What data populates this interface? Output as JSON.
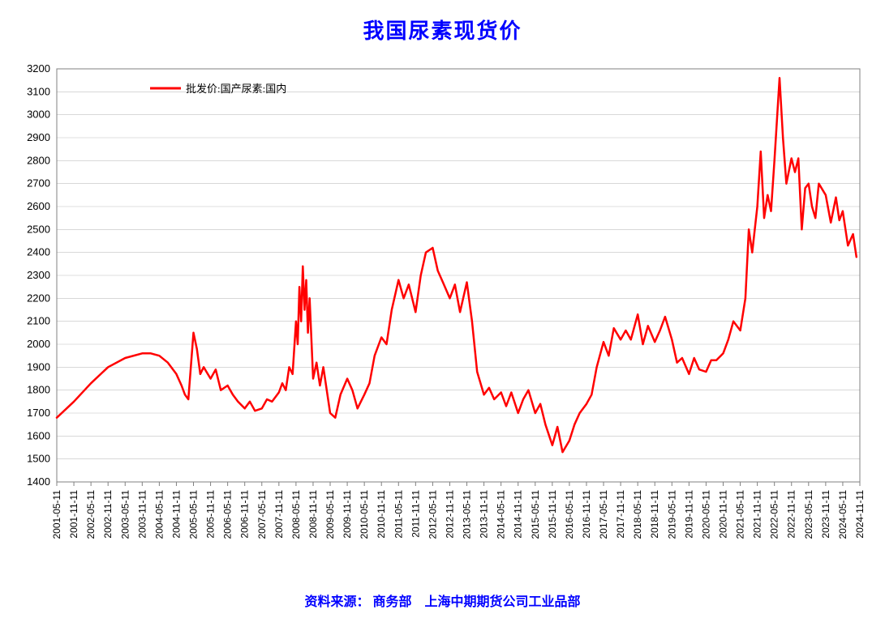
{
  "chart": {
    "type": "line",
    "title": "我国尿素现货价",
    "title_fontsize": 26,
    "title_color": "#0000ff",
    "footer": "资料来源： 商务部　上海中期期货公司工业品部",
    "footer_fontsize": 16,
    "footer_color": "#0000ff",
    "background_color": "#ffffff",
    "plot_border_color": "#808080",
    "plot_border_width": 1,
    "gridline_color": "#c0c0c0",
    "gridline_width": 0.6,
    "line_color": "#ff0000",
    "line_width": 2.5,
    "legend": {
      "label": "批发价:国产尿素:国内",
      "position": "top-left",
      "line_color": "#ff0000",
      "fontsize": 13
    },
    "y_axis": {
      "min": 1400,
      "max": 3200,
      "tick_step": 100,
      "label_fontsize": 13,
      "label_color": "#000000"
    },
    "x_axis": {
      "labels": [
        "2001-05-11",
        "2001-11-11",
        "2002-05-11",
        "2002-11-11",
        "2003-05-11",
        "2003-11-11",
        "2004-05-11",
        "2004-11-11",
        "2005-05-11",
        "2005-11-11",
        "2006-05-11",
        "2006-11-11",
        "2007-05-11",
        "2007-11-11",
        "2008-05-11",
        "2008-11-11",
        "2009-05-11",
        "2009-11-11",
        "2010-05-11",
        "2010-11-11",
        "2011-05-11",
        "2011-11-11",
        "2012-05-11",
        "2012-11-11",
        "2013-05-11",
        "2013-11-11",
        "2014-05-11",
        "2014-11-11",
        "2015-05-11",
        "2015-11-11",
        "2016-05-11",
        "2016-11-11",
        "2017-05-11",
        "2017-11-11",
        "2018-05-11",
        "2018-11-11",
        "2019-05-11",
        "2019-11-11",
        "2020-05-11",
        "2020-11-11",
        "2021-05-11",
        "2021-11-11",
        "2022-05-11",
        "2022-11-11",
        "2023-05-11",
        "2023-11-11",
        "2024-05-11",
        "2024-11-11"
      ],
      "label_fontsize": 12,
      "label_color": "#000000",
      "label_rotation": -90
    },
    "series": [
      {
        "name": "批发价:国产尿素:国内",
        "color": "#ff0000",
        "data": [
          [
            0,
            1680
          ],
          [
            1,
            1750
          ],
          [
            2,
            1830
          ],
          [
            3,
            1900
          ],
          [
            4,
            1940
          ],
          [
            5,
            1960
          ],
          [
            5.5,
            1960
          ],
          [
            6,
            1950
          ],
          [
            6.5,
            1920
          ],
          [
            7,
            1870
          ],
          [
            7.3,
            1820
          ],
          [
            7.5,
            1780
          ],
          [
            7.7,
            1760
          ],
          [
            8,
            2050
          ],
          [
            8.2,
            1980
          ],
          [
            8.4,
            1870
          ],
          [
            8.6,
            1900
          ],
          [
            9,
            1850
          ],
          [
            9.3,
            1890
          ],
          [
            9.6,
            1800
          ],
          [
            10,
            1820
          ],
          [
            10.3,
            1780
          ],
          [
            10.6,
            1750
          ],
          [
            11,
            1720
          ],
          [
            11.3,
            1750
          ],
          [
            11.6,
            1710
          ],
          [
            12,
            1720
          ],
          [
            12.3,
            1760
          ],
          [
            12.6,
            1750
          ],
          [
            13,
            1790
          ],
          [
            13.2,
            1830
          ],
          [
            13.4,
            1800
          ],
          [
            13.6,
            1900
          ],
          [
            13.8,
            1870
          ],
          [
            14,
            2100
          ],
          [
            14.1,
            2000
          ],
          [
            14.2,
            2250
          ],
          [
            14.3,
            2100
          ],
          [
            14.4,
            2340
          ],
          [
            14.5,
            2150
          ],
          [
            14.6,
            2280
          ],
          [
            14.7,
            2050
          ],
          [
            14.8,
            2200
          ],
          [
            15,
            1850
          ],
          [
            15.2,
            1920
          ],
          [
            15.4,
            1820
          ],
          [
            15.6,
            1900
          ],
          [
            15.8,
            1800
          ],
          [
            16,
            1700
          ],
          [
            16.3,
            1680
          ],
          [
            16.6,
            1780
          ],
          [
            17,
            1850
          ],
          [
            17.3,
            1800
          ],
          [
            17.6,
            1720
          ],
          [
            18,
            1780
          ],
          [
            18.3,
            1830
          ],
          [
            18.6,
            1950
          ],
          [
            19,
            2030
          ],
          [
            19.3,
            2000
          ],
          [
            19.6,
            2150
          ],
          [
            20,
            2280
          ],
          [
            20.3,
            2200
          ],
          [
            20.6,
            2260
          ],
          [
            21,
            2140
          ],
          [
            21.3,
            2300
          ],
          [
            21.6,
            2400
          ],
          [
            22,
            2420
          ],
          [
            22.3,
            2320
          ],
          [
            22.6,
            2270
          ],
          [
            23,
            2200
          ],
          [
            23.3,
            2260
          ],
          [
            23.6,
            2140
          ],
          [
            24,
            2270
          ],
          [
            24.3,
            2100
          ],
          [
            24.6,
            1880
          ],
          [
            25,
            1780
          ],
          [
            25.3,
            1810
          ],
          [
            25.6,
            1760
          ],
          [
            26,
            1790
          ],
          [
            26.3,
            1730
          ],
          [
            26.6,
            1790
          ],
          [
            27,
            1700
          ],
          [
            27.3,
            1760
          ],
          [
            27.6,
            1800
          ],
          [
            28,
            1700
          ],
          [
            28.3,
            1740
          ],
          [
            28.6,
            1650
          ],
          [
            29,
            1560
          ],
          [
            29.3,
            1640
          ],
          [
            29.6,
            1530
          ],
          [
            30,
            1580
          ],
          [
            30.3,
            1650
          ],
          [
            30.6,
            1700
          ],
          [
            31,
            1740
          ],
          [
            31.3,
            1780
          ],
          [
            31.6,
            1900
          ],
          [
            32,
            2010
          ],
          [
            32.3,
            1950
          ],
          [
            32.6,
            2070
          ],
          [
            33,
            2020
          ],
          [
            33.3,
            2060
          ],
          [
            33.6,
            2020
          ],
          [
            34,
            2130
          ],
          [
            34.3,
            2000
          ],
          [
            34.6,
            2080
          ],
          [
            35,
            2010
          ],
          [
            35.3,
            2060
          ],
          [
            35.6,
            2120
          ],
          [
            36,
            2020
          ],
          [
            36.3,
            1920
          ],
          [
            36.6,
            1940
          ],
          [
            37,
            1870
          ],
          [
            37.3,
            1940
          ],
          [
            37.6,
            1890
          ],
          [
            38,
            1880
          ],
          [
            38.3,
            1930
          ],
          [
            38.6,
            1930
          ],
          [
            39,
            1960
          ],
          [
            39.3,
            2020
          ],
          [
            39.6,
            2100
          ],
          [
            40,
            2060
          ],
          [
            40.3,
            2200
          ],
          [
            40.5,
            2500
          ],
          [
            40.7,
            2400
          ],
          [
            41,
            2600
          ],
          [
            41.2,
            2840
          ],
          [
            41.4,
            2550
          ],
          [
            41.6,
            2650
          ],
          [
            41.8,
            2580
          ],
          [
            42,
            2800
          ],
          [
            42.1,
            2920
          ],
          [
            42.3,
            3160
          ],
          [
            42.5,
            2900
          ],
          [
            42.7,
            2700
          ],
          [
            43,
            2810
          ],
          [
            43.2,
            2750
          ],
          [
            43.4,
            2810
          ],
          [
            43.6,
            2500
          ],
          [
            43.8,
            2680
          ],
          [
            44,
            2700
          ],
          [
            44.2,
            2600
          ],
          [
            44.4,
            2550
          ],
          [
            44.6,
            2700
          ],
          [
            45,
            2650
          ],
          [
            45.3,
            2530
          ],
          [
            45.6,
            2640
          ],
          [
            45.8,
            2540
          ],
          [
            46,
            2580
          ],
          [
            46.3,
            2430
          ],
          [
            46.6,
            2480
          ],
          [
            46.8,
            2380
          ]
        ]
      }
    ]
  }
}
